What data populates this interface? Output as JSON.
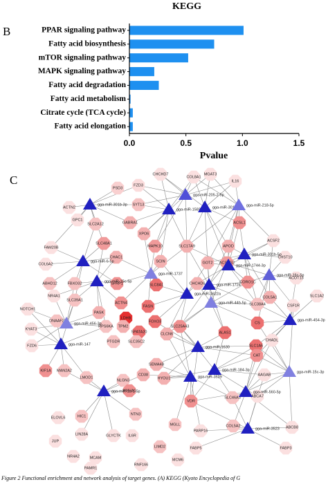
{
  "chart_data": {
    "type": "bar",
    "title": "KEGG",
    "panel_label": "B",
    "categories": [
      "PPAR signaling pathway",
      "Fatty acid biosynthesis",
      "mTOR signaling pathway",
      "MAPK signaling pathway",
      "Fatty acid degradation",
      "Fatty acid metabolism",
      "Citrate cycle (TCA cycle)",
      "Fatty acid elongation"
    ],
    "values": [
      1.01,
      0.75,
      0.52,
      0.22,
      0.26,
      0.01,
      0.03,
      0.03
    ],
    "color": "#1e90f0",
    "orientation": "horizontal",
    "xlabel": "Pvalue",
    "xlim": [
      0,
      1.5
    ],
    "xticks": [
      {
        "value": 0,
        "label": "0.0"
      },
      0.5,
      {
        "value": 1,
        "label": "1.0"
      },
      1.5
    ]
  },
  "network": {
    "panel_label": "C",
    "nodes": [
      {
        "label": "CHCHD7",
        "color": "#fbe0e0"
      },
      {
        "label": "COL8A1",
        "color": "#fbe0e0"
      },
      {
        "label": "MGAT3",
        "color": "#fbe0e0"
      },
      {
        "label": "IL16",
        "color": "#fbe0e0"
      },
      {
        "label": "FZD3",
        "color": "#fbdcdc"
      },
      {
        "label": "PSD3",
        "color": "#f9d0d0"
      },
      {
        "label": "SYT13",
        "color": "#f6c2c2"
      },
      {
        "label": "ACTN2",
        "color": "#fbe0e0"
      },
      {
        "label": "GPC1",
        "color": "#fbe0e0"
      },
      {
        "label": "SLC2A12",
        "color": "#f6c2c2"
      },
      {
        "label": "GABRA1",
        "color": "#f3b0b0"
      },
      {
        "label": "ACSL1",
        "color": "#f09090"
      },
      {
        "label": "XPO6",
        "color": "#f3b0b0"
      },
      {
        "label": "SLC48A1",
        "color": "#f09a9a"
      },
      {
        "label": "MAPK10",
        "color": "#f09a9a"
      },
      {
        "label": "SLC17A9",
        "color": "#f3b0b0"
      },
      {
        "label": "APOD",
        "color": "#f3b0b0"
      },
      {
        "label": "ACSF2",
        "color": "#fbe0e0"
      },
      {
        "label": "CHAC1",
        "color": "#f3b0b0"
      },
      {
        "label": "SCIN",
        "color": "#f3b0b0"
      },
      {
        "label": "GOT2",
        "color": "#f3b0b0"
      },
      {
        "label": "ACSBG2",
        "color": "#f09a9a"
      },
      {
        "label": "FAM20B",
        "color": "#fbe0e0"
      },
      {
        "label": "CHST10",
        "color": "#fbe0e0"
      },
      {
        "label": "COL6A2",
        "color": "#fbe0e0"
      },
      {
        "label": "ABHD12",
        "color": "#f6c2c2"
      },
      {
        "label": "FBXO32",
        "color": "#f6c2c2"
      },
      {
        "label": "SFRP1",
        "color": "#f09090"
      },
      {
        "label": "SLC8A1",
        "color": "#ec7070"
      },
      {
        "label": "CHCHD6",
        "color": "#f3b0b0"
      },
      {
        "label": "CORO1C",
        "color": "#f09090"
      },
      {
        "label": "ACOT13",
        "color": "#fbe0e0"
      },
      {
        "label": "NR4A1",
        "color": "#fbe0e0"
      },
      {
        "label": "SLC39A1",
        "color": "#f6c2c2"
      },
      {
        "label": "FASN",
        "color": "#ec7070"
      },
      {
        "label": "LDHB",
        "color": "#e53030"
      },
      {
        "label": "COL5A1",
        "color": "#f3b0b0"
      },
      {
        "label": "SLC38A4",
        "color": "#f6c2c2"
      },
      {
        "label": "CSF1R",
        "color": "#fbe0e0"
      },
      {
        "label": "SLC1A2",
        "color": "#fbe0e0"
      },
      {
        "label": "NOTCH1",
        "color": "#fbe0e0"
      },
      {
        "label": "DNAAF2",
        "color": "#f6c2c2"
      },
      {
        "label": "PASK",
        "color": "#f3b0b0"
      },
      {
        "label": "ACTN4",
        "color": "#f09090"
      },
      {
        "label": "RPS6KA",
        "color": "#f6c2c2"
      },
      {
        "label": "TPM2",
        "color": "#f3b0b0"
      },
      {
        "label": "FOXO3",
        "color": "#ec7070"
      },
      {
        "label": "SLC25A43",
        "color": "#f09090"
      },
      {
        "label": "ALAS1",
        "color": "#ec7070"
      },
      {
        "label": "CS",
        "color": "#ec7070"
      },
      {
        "label": "CHADL",
        "color": "#fbe0e0"
      },
      {
        "label": "KYAT3",
        "color": "#fbe0e0"
      },
      {
        "label": "FZD6",
        "color": "#fbe0e0"
      },
      {
        "label": "SPATA20",
        "color": "#ec7070"
      },
      {
        "label": "CLCN6",
        "color": "#f3b0b0"
      },
      {
        "label": "SLC1A6",
        "color": "#ec7070"
      },
      {
        "label": "CAT",
        "color": "#f09090"
      },
      {
        "label": "PTGDR",
        "color": "#f6c2c2"
      },
      {
        "label": "SLC35C2",
        "color": "#f6c2c2"
      },
      {
        "label": "KIF1A",
        "color": "#f09090"
      },
      {
        "label": "MAN2A2",
        "color": "#f6c2c2"
      },
      {
        "label": "LMOD1",
        "color": "#f6c2c2"
      },
      {
        "label": "NLGN3",
        "color": "#f6c2c2"
      },
      {
        "label": "SEMA4B",
        "color": "#f3b0b0"
      },
      {
        "label": "CD38",
        "color": "#f3b0b0"
      },
      {
        "label": "HYOU1",
        "color": "#f3b0b0"
      },
      {
        "label": "HMHA1",
        "color": "#f09090"
      },
      {
        "label": "AAGAB",
        "color": "#fbe0e0"
      },
      {
        "label": "ELOVL6",
        "color": "#fbe0e0"
      },
      {
        "label": "HIC1",
        "color": "#f6c2c2"
      },
      {
        "label": "VDR",
        "color": "#f09090"
      },
      {
        "label": "SLC46A3",
        "color": "#f6c2c2"
      },
      {
        "label": "ABCA7",
        "color": "#fbe0e0"
      },
      {
        "label": "JUP",
        "color": "#fbe0e0"
      },
      {
        "label": "LIN28A",
        "color": "#fbe0e0"
      },
      {
        "label": "NTN3",
        "color": "#f6c2c2"
      },
      {
        "label": "MGLL",
        "color": "#f6c2c2"
      },
      {
        "label": "COL5A2",
        "color": "#f6c2c2"
      },
      {
        "label": "ABCB8",
        "color": "#fbe0e0"
      },
      {
        "label": "FABP3",
        "color": "#fbe0e0"
      },
      {
        "label": "NR4A2",
        "color": "#fbe0e0"
      },
      {
        "label": "MCAM",
        "color": "#fbe0e0"
      },
      {
        "label": "GLYCTK",
        "color": "#fbe0e0"
      },
      {
        "label": "IL6R",
        "color": "#fbe0e0"
      },
      {
        "label": "PARP16",
        "color": "#fbe0e0"
      },
      {
        "label": "FABP5",
        "color": "#fbe0e0"
      },
      {
        "label": "PAMR1",
        "color": "#fbe0e0"
      },
      {
        "label": "LIMD2",
        "color": "#f6c2c2"
      },
      {
        "label": "MCM6",
        "color": "#fbe0e0"
      },
      {
        "label": "RNF166",
        "color": "#fbe0e0"
      },
      {
        "label": "gga-miR-205-2-5p",
        "color": "#5050d8"
      },
      {
        "label": "gga-miR-301b-3p",
        "color": "#2020c0"
      },
      {
        "label": "gga-miR-1583-5p",
        "color": "#2020c0"
      },
      {
        "label": "gga-miR-301a-5p",
        "color": "#2020c0"
      },
      {
        "label": "gga-miR-218-5p",
        "color": "#7070e0"
      },
      {
        "label": "gga-miR-6-5p",
        "color": "#2020c0"
      },
      {
        "label": "gga-miR-1737",
        "color": "#8080e0"
      },
      {
        "label": "gga-miR-301b-5p",
        "color": "#2020c0"
      },
      {
        "label": "gga-miR-1744-3p",
        "color": "#2020c0"
      },
      {
        "label": "gga-miR-1724",
        "color": "#2020c0"
      },
      {
        "label": "gga-miR-15c-5p",
        "color": "#2020c0"
      },
      {
        "label": "gga-miR-16c-5p",
        "color": "#6060d8"
      },
      {
        "label": "gga-miR-1622a",
        "color": "#2020c0"
      },
      {
        "label": "gga-miR-44b-5p",
        "color": "#8080e0"
      },
      {
        "label": "gga-miR-454-3p",
        "color": "#2020c0"
      },
      {
        "label": "gga-miR-456-3p",
        "color": "#8080e0"
      },
      {
        "label": "gga-miR-1630",
        "color": "#2020c0"
      },
      {
        "label": "gga-miR-147",
        "color": "#2020c0"
      },
      {
        "label": "gga-miR-3529",
        "color": "#2020c0"
      },
      {
        "label": "gga-miR-184-3p",
        "color": "#2020c0"
      },
      {
        "label": "gga-miR-560-5p",
        "color": "#2020c0"
      },
      {
        "label": "gga-miR-15c-3p",
        "color": "#8080e0"
      },
      {
        "label": "gga-miR-1a-1-5p",
        "color": "#2020c0"
      },
      {
        "label": "gga-miR-3523",
        "color": "#2020c0"
      }
    ]
  },
  "caption": "Figure 2 Functional enrichment and network analysis of target genes. (A) KEGG (Kyoto Encyclopedia of G"
}
